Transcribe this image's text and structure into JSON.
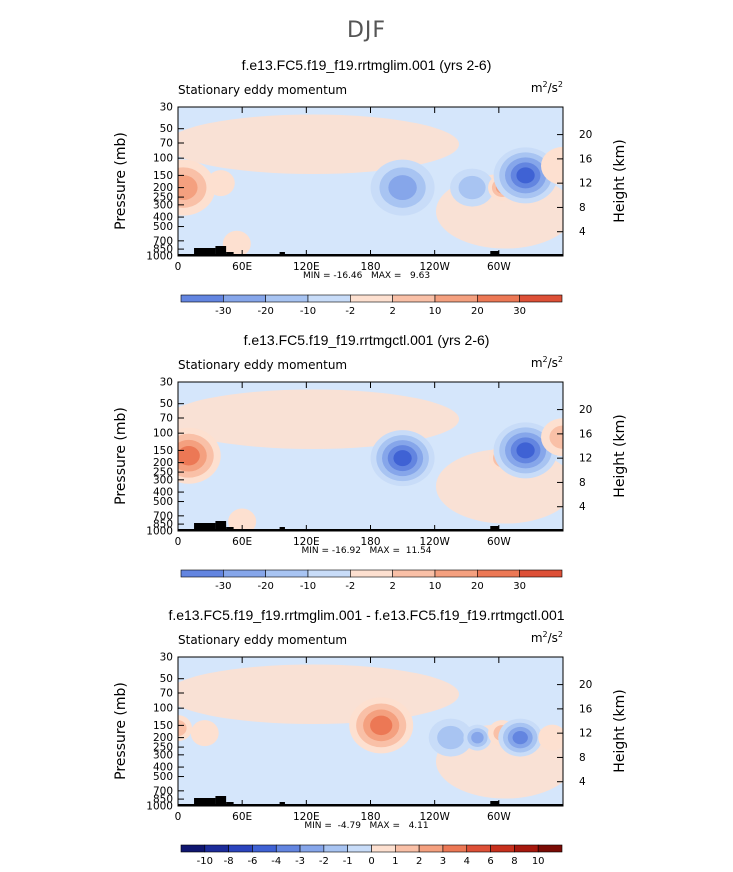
{
  "main_title": "DJF",
  "colors": {
    "pos": [
      "#fde0d0",
      "#f9c0a7",
      "#f4a07f",
      "#ec7855",
      "#dd5037",
      "#c7301d",
      "#a6180d",
      "#7a0b05"
    ],
    "neg": [
      "#c8dcf8",
      "#a8c4f2",
      "#86a6ea",
      "#6385e0",
      "#3f62d4",
      "#2b44bd",
      "#1c2c9a",
      "#0f1670"
    ],
    "background": "#d5e6fb",
    "topography": "#000000"
  },
  "chart_data": [
    {
      "type": "heatmap",
      "title": "f.e13.FC5.f19_f19.rrtmglim.001 (yrs 2-6)",
      "left_string": "Stationary eddy momentum",
      "units": "m2/s2",
      "ylabel": "Pressure (mb)",
      "ylabel_right": "Height (km)",
      "pressure_ticks": [
        "30",
        "50",
        "70",
        "100",
        "150",
        "200",
        "250",
        "300",
        "400",
        "500",
        "700",
        "850",
        "1000"
      ],
      "height_ticks": [
        "20",
        "16",
        "12",
        "8",
        "4"
      ],
      "x_ticks": [
        "0",
        "60E",
        "120E",
        "180",
        "120W",
        "60W"
      ],
      "min_max": "MIN = -16.46   MAX =   9.63",
      "colorbar_labels": [
        "-30",
        "-20",
        "-10",
        "-2",
        "2",
        "10",
        "20",
        "30"
      ],
      "features": [
        {
          "lon": 5,
          "p": 200,
          "value": 8,
          "extent": "large"
        },
        {
          "lon": 40,
          "p": 180,
          "value": 2,
          "extent": "small"
        },
        {
          "lon": 55,
          "p": 750,
          "value": 4,
          "extent": "small"
        },
        {
          "lon": 210,
          "p": 200,
          "value": -10,
          "extent": "large"
        },
        {
          "lon": 275,
          "p": 200,
          "value": -6,
          "extent": "medium"
        },
        {
          "lon": 303,
          "p": 200,
          "value": 8,
          "extent": "small"
        },
        {
          "lon": 325,
          "p": 150,
          "value": -16,
          "extent": "large"
        },
        {
          "lon": 360,
          "p": 120,
          "value": 2,
          "extent": "medium"
        }
      ]
    },
    {
      "type": "heatmap",
      "title": "f.e13.FC5.f19_f19.rrtmgctl.001 (yrs 2-6)",
      "left_string": "Stationary eddy momentum",
      "units": "m2/s2",
      "ylabel": "Pressure (mb)",
      "ylabel_right": "Height (km)",
      "pressure_ticks": [
        "30",
        "50",
        "70",
        "100",
        "150",
        "200",
        "250",
        "300",
        "400",
        "500",
        "700",
        "850",
        "1000"
      ],
      "height_ticks": [
        "20",
        "16",
        "12",
        "8",
        "4"
      ],
      "x_ticks": [
        "0",
        "60E",
        "120E",
        "180",
        "120W",
        "60W"
      ],
      "min_max": "MIN = -16.92   MAX =  11.54",
      "colorbar_labels": [
        "-30",
        "-20",
        "-10",
        "-2",
        "2",
        "10",
        "20",
        "30"
      ],
      "features": [
        {
          "lon": 10,
          "p": 170,
          "value": 11,
          "extent": "large"
        },
        {
          "lon": 60,
          "p": 800,
          "value": 4,
          "extent": "small"
        },
        {
          "lon": 210,
          "p": 180,
          "value": -14,
          "extent": "large"
        },
        {
          "lon": 304,
          "p": 180,
          "value": 10,
          "extent": "small"
        },
        {
          "lon": 325,
          "p": 150,
          "value": -16,
          "extent": "large"
        },
        {
          "lon": 360,
          "p": 110,
          "value": 6,
          "extent": "medium"
        }
      ]
    },
    {
      "type": "heatmap",
      "title": "f.e13.FC5.f19_f19.rrtmglim.001 - f.e13.FC5.f19_f19.rrtmgctl.001",
      "left_string": "Stationary eddy momentum",
      "units": "m2/s2",
      "ylabel": "Pressure (mb)",
      "ylabel_right": "Height (km)",
      "pressure_ticks": [
        "30",
        "50",
        "70",
        "100",
        "150",
        "200",
        "250",
        "300",
        "400",
        "500",
        "700",
        "850",
        "1000"
      ],
      "height_ticks": [
        "20",
        "16",
        "12",
        "8",
        "4"
      ],
      "x_ticks": [
        "0",
        "60E",
        "120E",
        "180",
        "120W",
        "60W"
      ],
      "min_max": "MIN =  -4.79   MAX =   4.11",
      "colorbar_labels": [
        "-10",
        "-8",
        "-6",
        "-4",
        "-3",
        "-2",
        "-1",
        "0",
        "1",
        "2",
        "3",
        "4",
        "6",
        "8",
        "10"
      ],
      "features": [
        {
          "lon": 0,
          "p": 160,
          "value": 2,
          "extent": "small"
        },
        {
          "lon": 25,
          "p": 180,
          "value": 1,
          "extent": "small"
        },
        {
          "lon": 190,
          "p": 150,
          "value": 4,
          "extent": "large"
        },
        {
          "lon": 255,
          "p": 200,
          "value": -2,
          "extent": "medium"
        },
        {
          "lon": 280,
          "p": 200,
          "value": -3,
          "extent": "small"
        },
        {
          "lon": 303,
          "p": 180,
          "value": 2,
          "extent": "small"
        },
        {
          "lon": 320,
          "p": 200,
          "value": -4.5,
          "extent": "medium"
        },
        {
          "lon": 350,
          "p": 200,
          "value": 1,
          "extent": "small"
        }
      ]
    }
  ]
}
